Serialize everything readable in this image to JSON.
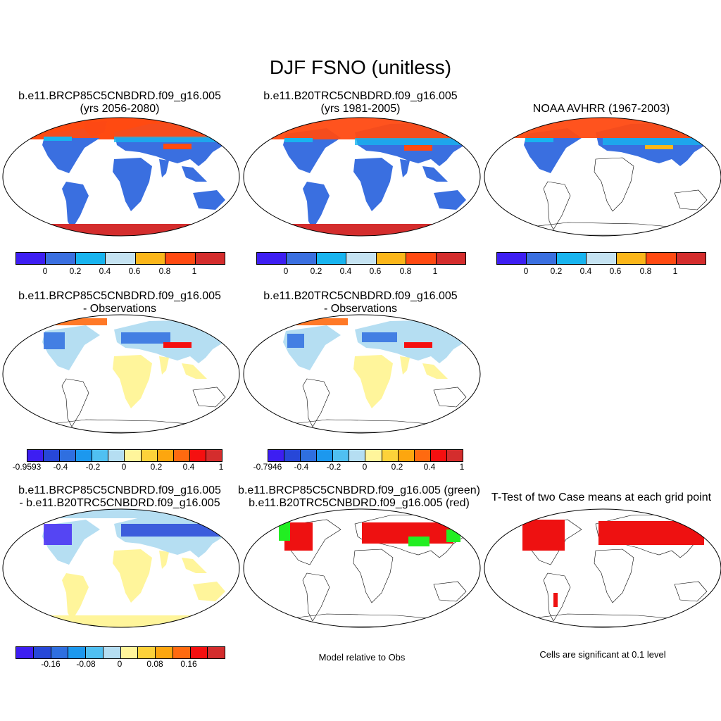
{
  "title": "DJF FSNO (unitless)",
  "panels": [
    {
      "line1": "b.e11.BRCP85C5CNBDRD.f09_g16.005",
      "line2": "(yrs 2056-2080)"
    },
    {
      "line1": "b.e11.B20TRC5CNBDRD.f09_g16.005",
      "line2": "(yrs 1981-2005)"
    },
    {
      "line1": "NOAA AVHRR (1967-2003)",
      "line2": ""
    },
    {
      "line1": "b.e11.BRCP85C5CNBDRD.f09_g16.005",
      "line2": "- Observations"
    },
    {
      "line1": "b.e11.B20TRC5CNBDRD.f09_g16.005",
      "line2": "- Observations"
    },
    {
      "line1": "b.e11.BRCP85C5CNBDRD.f09_g16.005",
      "line2": "- b.e11.B20TRC5CNBDRD.f09_g16.005"
    },
    {
      "line1": "b.e11.BRCP85C5CNBDRD.f09_g16.005 (green)",
      "line2": "b.e11.B20TRC5CNBDRD.f09_g16.005 (red)"
    },
    {
      "line1": "T-Test of two Case means at each grid point",
      "line2": ""
    }
  ],
  "colorbars": {
    "absolute": {
      "colors": [
        "#3d1ef2",
        "#3a6fe0",
        "#18b4ef",
        "#c5e3f2",
        "#fbb61a",
        "#ff4a12",
        "#d42d2d"
      ],
      "labels": [
        "0",
        "0.2",
        "0.4",
        "0.6",
        "0.8",
        "1"
      ]
    },
    "diff_obs_1": {
      "colors": [
        "#3d1ef2",
        "#2747d8",
        "#2f6fe0",
        "#1c98ee",
        "#50c0f2",
        "#b5def2",
        "#fff59b",
        "#fdd23a",
        "#fda60f",
        "#ff6a10",
        "#f51010",
        "#d42d2d"
      ],
      "labels": [
        "-0.9593",
        "-0.4",
        "-0.2",
        "0",
        "0.2",
        "0.4",
        "1"
      ]
    },
    "diff_obs_2": {
      "colors": [
        "#3d1ef2",
        "#2747d8",
        "#2f6fe0",
        "#1c98ee",
        "#50c0f2",
        "#b5def2",
        "#fff59b",
        "#fdd23a",
        "#fda60f",
        "#ff6a10",
        "#f51010",
        "#d42d2d"
      ],
      "labels": [
        "-0.7946",
        "-0.4",
        "-0.2",
        "0",
        "0.2",
        "0.4",
        "1"
      ]
    },
    "diff_models": {
      "colors": [
        "#3d1ef2",
        "#2747d8",
        "#2f6fe0",
        "#1c98ee",
        "#50c0f2",
        "#b5def2",
        "#fff59b",
        "#fdd23a",
        "#fda60f",
        "#ff6a10",
        "#f51010",
        "#d42d2d"
      ],
      "labels": [
        "-0.16",
        "-0.08",
        "0",
        "0.08",
        "0.16"
      ]
    }
  },
  "notes": {
    "model_rel_obs": "Model relative to Obs",
    "significance": "Cells are significant at 0.1 level"
  },
  "map_colors": {
    "ocean": "#ffffff",
    "land_blue": "#3a6fe0",
    "snow_red": "#ff4a12",
    "snow_darkred": "#d42d2d",
    "diff_yellow": "#fff59b",
    "diff_lightblue": "#b5def2",
    "diff_blue": "#2f6fe0",
    "sig_green": "#22ee22",
    "sig_red": "#ee1111"
  }
}
